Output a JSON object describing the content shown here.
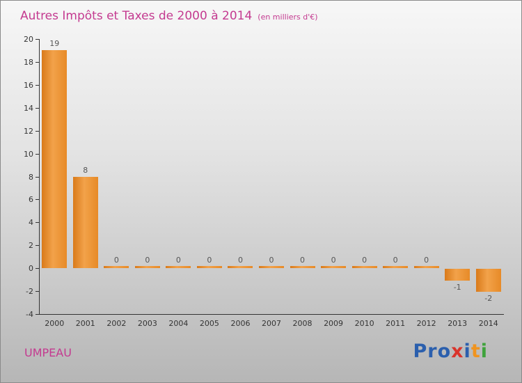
{
  "title": "Autres Impôts et Taxes de 2000 à 2014",
  "subtitle": "(en milliers d'€)",
  "footer": {
    "entity": "UMPEAU",
    "logo_letters": [
      {
        "char": "P",
        "color": "#2b5fad"
      },
      {
        "char": "r",
        "color": "#2b5fad"
      },
      {
        "char": "o",
        "color": "#2b5fad"
      },
      {
        "char": "x",
        "color": "#d9342b"
      },
      {
        "char": "i",
        "color": "#2b5fad"
      },
      {
        "char": "t",
        "color": "#f0941f"
      },
      {
        "char": "i",
        "color": "#3fa33c"
      }
    ]
  },
  "colors": {
    "title_text": "#c43a90",
    "bar_dark": "#d97a1a",
    "bar_light": "#f2a24a",
    "axis": "#333333",
    "value_label": "#555555"
  },
  "chart_data": {
    "type": "bar",
    "categories": [
      "2000",
      "2001",
      "2002",
      "2003",
      "2004",
      "2005",
      "2006",
      "2007",
      "2008",
      "2009",
      "2010",
      "2011",
      "2012",
      "2013",
      "2014"
    ],
    "values": [
      19,
      8,
      0,
      0,
      0,
      0,
      0,
      0,
      0,
      0,
      0,
      0,
      0,
      -1,
      -2
    ],
    "title": "Autres Impôts et Taxes de 2000 à 2014",
    "subtitle": "(en milliers d'€)",
    "xlabel": "",
    "ylabel": "",
    "ylim": [
      -4,
      20
    ],
    "ytick_step": 2,
    "grid": false,
    "legend": false,
    "bar_value_labels": true
  }
}
